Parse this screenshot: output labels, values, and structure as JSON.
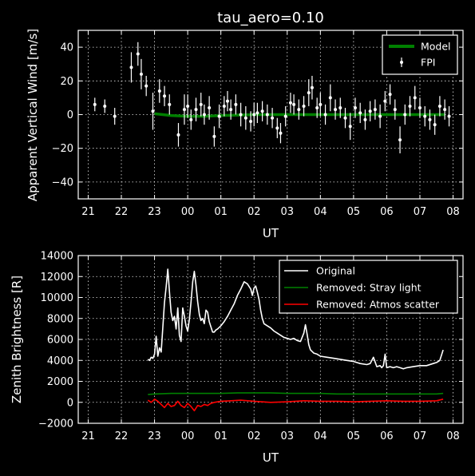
{
  "chart_data": [
    {
      "type": "line",
      "title": "tau_aero=0.10",
      "xlabel": "UT",
      "ylabel": "Apparent Vertical Wind [m/s]",
      "xticks": [
        "21",
        "22",
        "23",
        "00",
        "01",
        "02",
        "03",
        "04",
        "05",
        "06",
        "07",
        "08"
      ],
      "yticks": [
        "40",
        "20",
        "0",
        "−20",
        "−40"
      ],
      "xlim": [
        20.7,
        32.3
      ],
      "ylim": [
        -50,
        50
      ],
      "grid": true,
      "legend_position": "upper-right",
      "series": [
        {
          "name": "Model",
          "style": "line",
          "color": "#008000",
          "x": [
            23.0,
            23.5,
            24.0,
            24.5,
            25.0,
            25.5,
            26.0,
            26.5,
            27.0,
            27.5,
            28.0,
            28.5,
            29.0,
            29.5,
            30.0,
            30.5,
            31.0,
            31.5,
            31.75
          ],
          "values": [
            0.5,
            -0.5,
            -1.0,
            -1.0,
            -0.5,
            -0.3,
            0.0,
            0.0,
            0.0,
            0.0,
            0.0,
            0.0,
            0.0,
            0.0,
            0.0,
            0.0,
            0.0,
            0.0,
            0.0
          ]
        },
        {
          "name": "FPI",
          "style": "errorbar",
          "color": "#ffffff",
          "x": [
            21.2,
            21.5,
            21.8,
            22.3,
            22.5,
            22.6,
            22.75,
            22.95,
            23.15,
            23.3,
            23.45,
            23.72,
            23.9,
            24.0,
            24.1,
            24.25,
            24.4,
            24.5,
            24.65,
            24.8,
            24.95,
            25.1,
            25.2,
            25.3,
            25.45,
            25.6,
            25.75,
            25.9,
            26.0,
            26.1,
            26.25,
            26.4,
            26.55,
            26.7,
            26.8,
            26.95,
            27.1,
            27.2,
            27.35,
            27.5,
            27.65,
            27.75,
            27.9,
            28.0,
            28.15,
            28.3,
            28.45,
            28.6,
            28.75,
            28.9,
            29.05,
            29.2,
            29.35,
            29.5,
            29.65,
            29.8,
            29.95,
            30.1,
            30.25,
            30.4,
            30.55,
            30.7,
            30.85,
            31.0,
            31.15,
            31.3,
            31.45,
            31.6,
            31.75,
            31.88
          ],
          "values": [
            6,
            5,
            -1,
            28,
            36,
            24,
            17,
            2,
            14,
            11,
            6,
            -12,
            3,
            5,
            -3,
            3,
            6,
            0,
            4,
            -13,
            -1,
            5,
            8,
            3,
            6,
            0,
            -2,
            -4,
            0,
            1,
            2,
            0,
            -2,
            -8,
            -11,
            -1,
            7,
            6,
            3,
            5,
            13,
            16,
            4,
            6,
            0,
            10,
            3,
            4,
            -2,
            -7,
            4,
            1,
            -3,
            2,
            3,
            -1,
            8,
            12,
            3,
            -15,
            0,
            5,
            10,
            4,
            -1,
            -3,
            -6,
            5,
            3,
            -1
          ],
          "errors": [
            4,
            4,
            5,
            9,
            7,
            9,
            6,
            11,
            7,
            6,
            6,
            7,
            9,
            7,
            6,
            7,
            7,
            6,
            7,
            6,
            7,
            6,
            6,
            6,
            6,
            7,
            7,
            6,
            7,
            6,
            6,
            6,
            6,
            6,
            6,
            6,
            6,
            6,
            6,
            6,
            8,
            7,
            6,
            7,
            6,
            8,
            6,
            6,
            6,
            8,
            6,
            6,
            6,
            6,
            6,
            7,
            6,
            6,
            6,
            8,
            6,
            6,
            7,
            6,
            6,
            6,
            6,
            6,
            6,
            6
          ]
        }
      ]
    },
    {
      "type": "line",
      "title": "",
      "xlabel": "UT",
      "ylabel": "Zenith Brightness [R]",
      "xticks": [
        "21",
        "22",
        "23",
        "00",
        "01",
        "02",
        "03",
        "04",
        "05",
        "06",
        "07",
        "08"
      ],
      "yticks": [
        "14000",
        "12000",
        "10000",
        "8000",
        "6000",
        "4000",
        "2000",
        "0",
        "−2000"
      ],
      "xlim": [
        20.7,
        32.3
      ],
      "ylim": [
        -2000,
        14000
      ],
      "grid": true,
      "legend_position": "upper-right",
      "series": [
        {
          "name": "Original",
          "color": "#ffffff",
          "x": [
            22.8,
            22.85,
            22.9,
            22.95,
            23.0,
            23.05,
            23.1,
            23.15,
            23.2,
            23.25,
            23.3,
            23.35,
            23.4,
            23.45,
            23.5,
            23.55,
            23.6,
            23.65,
            23.7,
            23.75,
            23.8,
            23.85,
            23.9,
            23.95,
            24.0,
            24.05,
            24.1,
            24.15,
            24.2,
            24.25,
            24.3,
            24.35,
            24.4,
            24.45,
            24.5,
            24.55,
            24.6,
            24.65,
            24.7,
            24.75,
            24.8,
            24.85,
            24.9,
            25.0,
            25.1,
            25.2,
            25.3,
            25.4,
            25.5,
            25.6,
            25.7,
            25.8,
            25.9,
            25.95,
            26.0,
            26.05,
            26.1,
            26.15,
            26.2,
            26.25,
            26.3,
            26.4,
            26.5,
            26.6,
            26.7,
            26.8,
            26.9,
            27.0,
            27.1,
            27.2,
            27.3,
            27.4,
            27.5,
            27.55,
            27.6,
            27.65,
            27.7,
            27.8,
            27.9,
            28.0,
            28.2,
            28.4,
            28.6,
            28.8,
            29.0,
            29.2,
            29.4,
            29.5,
            29.6,
            29.7,
            29.8,
            29.85,
            29.9,
            29.95,
            30.0,
            30.1,
            30.2,
            30.3,
            30.4,
            30.5,
            30.6,
            30.8,
            31.0,
            31.2,
            31.4,
            31.5,
            31.6,
            31.65,
            31.7
          ],
          "values": [
            4100,
            4000,
            4300,
            4200,
            4600,
            6300,
            4400,
            5200,
            4800,
            7200,
            9500,
            11000,
            12700,
            10500,
            8600,
            7800,
            8200,
            7000,
            9000,
            6400,
            5800,
            9000,
            8200,
            7300,
            6800,
            7900,
            9600,
            11500,
            12500,
            11200,
            9600,
            8400,
            7800,
            8000,
            7500,
            8800,
            8600,
            7700,
            7200,
            6700,
            6700,
            6900,
            7000,
            7300,
            7700,
            8200,
            8800,
            9400,
            10200,
            10800,
            11500,
            11300,
            10800,
            10200,
            10900,
            11100,
            10500,
            9800,
            8800,
            8000,
            7500,
            7300,
            7100,
            6800,
            6600,
            6400,
            6200,
            6100,
            6000,
            6100,
            5900,
            5800,
            6600,
            7400,
            6500,
            5500,
            5000,
            4700,
            4600,
            4400,
            4300,
            4200,
            4100,
            4000,
            3900,
            3700,
            3600,
            3700,
            4300,
            3400,
            3500,
            3300,
            3500,
            4600,
            3300,
            3400,
            3300,
            3400,
            3300,
            3200,
            3300,
            3400,
            3500,
            3500,
            3700,
            3800,
            4000,
            4500,
            5000
          ]
        },
        {
          "name": "Removed: Stray light",
          "color": "#008000",
          "x": [
            22.8,
            23.0,
            23.5,
            24.0,
            24.5,
            25.0,
            25.5,
            26.0,
            26.5,
            27.0,
            27.5,
            28.0,
            28.5,
            29.0,
            29.5,
            30.0,
            30.5,
            31.0,
            31.5,
            31.7
          ],
          "values": [
            750,
            800,
            850,
            850,
            850,
            850,
            900,
            900,
            900,
            850,
            850,
            850,
            800,
            800,
            800,
            800,
            800,
            800,
            800,
            850
          ]
        },
        {
          "name": "Removed: Atmos scatter",
          "color": "#ff0000",
          "x": [
            22.8,
            22.9,
            23.0,
            23.1,
            23.2,
            23.3,
            23.4,
            23.5,
            23.6,
            23.7,
            23.8,
            23.9,
            24.0,
            24.1,
            24.2,
            24.3,
            24.4,
            24.5,
            24.6,
            24.7,
            24.8,
            25.0,
            25.3,
            25.6,
            26.0,
            26.5,
            27.0,
            27.5,
            28.0,
            28.5,
            29.0,
            29.5,
            30.0,
            30.5,
            31.0,
            31.5,
            31.7
          ],
          "values": [
            200,
            0,
            300,
            100,
            -200,
            -500,
            -100,
            -400,
            -300,
            100,
            -300,
            -500,
            -100,
            -400,
            -800,
            -300,
            -400,
            -200,
            -300,
            -100,
            0,
            100,
            150,
            200,
            100,
            0,
            50,
            150,
            100,
            100,
            50,
            100,
            150,
            100,
            100,
            150,
            300
          ]
        }
      ]
    }
  ]
}
